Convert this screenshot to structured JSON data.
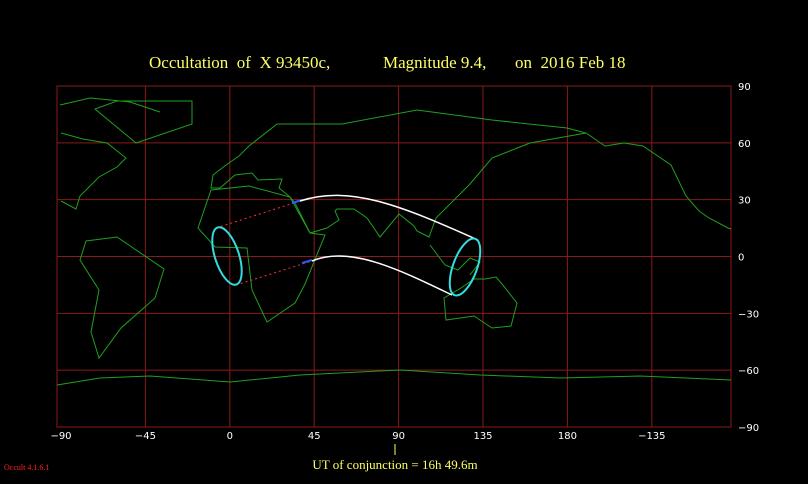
{
  "header": {
    "title": "Occultation  of  X 93450c,",
    "magnitude": "Magnitude 9.4,",
    "date": "on  2016 Feb 18"
  },
  "map": {
    "longitude_labels": [
      "−90",
      "−45",
      "0",
      "45",
      "90",
      "135",
      "180",
      "−135"
    ],
    "latitude_labels": [
      "90",
      "60",
      "30",
      "0",
      "−30",
      "−60",
      "−90"
    ]
  },
  "footer": {
    "conjunction": "UT of conjunction = 16h 49.6m",
    "version": "Occult 4.1.6.1"
  }
}
